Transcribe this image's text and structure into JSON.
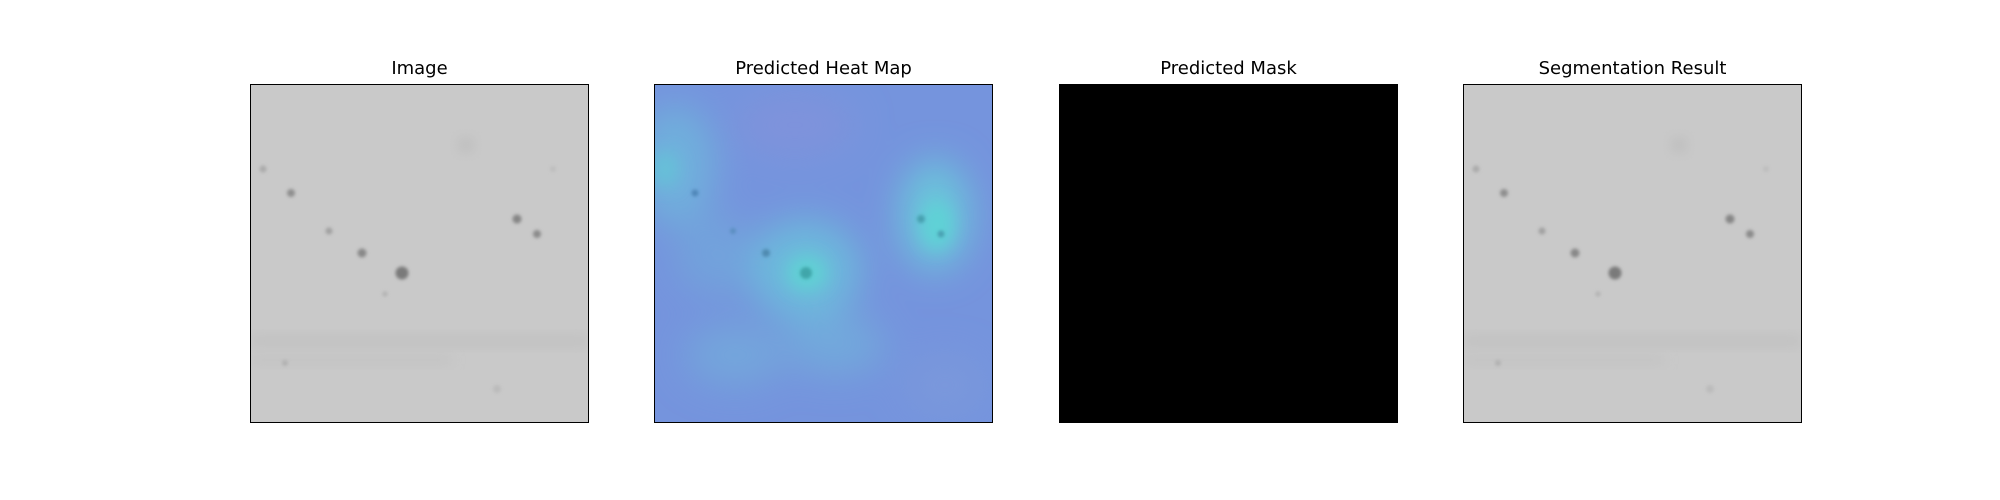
{
  "panels": [
    {
      "title": "Image"
    },
    {
      "title": "Predicted Heat Map"
    },
    {
      "title": "Predicted Mask"
    },
    {
      "title": "Segmentation Result"
    }
  ],
  "colors": {
    "image_background": "#c9c9c9",
    "heatmap_background": "#7594dd",
    "heatmap_hotspot": "#5fd0d6",
    "mask_background": "#000000",
    "axes_frame": "#000000"
  }
}
